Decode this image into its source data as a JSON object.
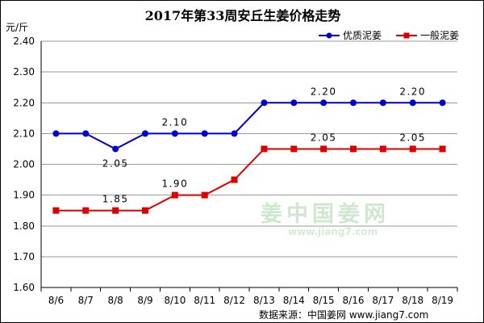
{
  "chart_data": {
    "type": "line",
    "title": "2017年第33周安丘生姜价格走势",
    "ylabel": "元/斤",
    "ylim": [
      1.6,
      2.4
    ],
    "yticks": [
      "1.60",
      "1.70",
      "1.80",
      "1.90",
      "2.00",
      "2.10",
      "2.20",
      "2.30",
      "2.40"
    ],
    "categories": [
      "8/6",
      "8/7",
      "8/8",
      "8/9",
      "8/10",
      "8/11",
      "8/12",
      "8/13",
      "8/14",
      "8/15",
      "8/16",
      "8/17",
      "8/18",
      "8/19"
    ],
    "grid": true,
    "legend_position": "top-right",
    "series": [
      {
        "name": "优质泥姜",
        "color": "#0000cc",
        "marker": "circle",
        "values": [
          2.1,
          2.1,
          2.05,
          2.1,
          2.1,
          2.1,
          2.1,
          2.2,
          2.2,
          2.2,
          2.2,
          2.2,
          2.2,
          2.2
        ],
        "data_labels": [
          {
            "index": 2,
            "text": "2.05",
            "position": "below"
          },
          {
            "index": 4,
            "text": "2.10",
            "position": "above"
          },
          {
            "index": 9,
            "text": "2.20",
            "position": "above"
          },
          {
            "index": 12,
            "text": "2.20",
            "position": "above"
          }
        ]
      },
      {
        "name": "一般泥姜",
        "color": "#dd0000",
        "marker": "square",
        "values": [
          1.85,
          1.85,
          1.85,
          1.85,
          1.9,
          1.9,
          1.95,
          2.05,
          2.05,
          2.05,
          2.05,
          2.05,
          2.05,
          2.05
        ],
        "data_labels": [
          {
            "index": 2,
            "text": "1.85",
            "position": "above"
          },
          {
            "index": 4,
            "text": "1.90",
            "position": "above"
          },
          {
            "index": 9,
            "text": "2.05",
            "position": "above"
          },
          {
            "index": 12,
            "text": "2.05",
            "position": "above"
          }
        ]
      }
    ]
  },
  "watermark": {
    "name": "中国姜网",
    "logo_glyph": "姜",
    "url": "www.jiang7.com"
  },
  "source_text": "数据来源：中国姜网  www.jiang7.com"
}
